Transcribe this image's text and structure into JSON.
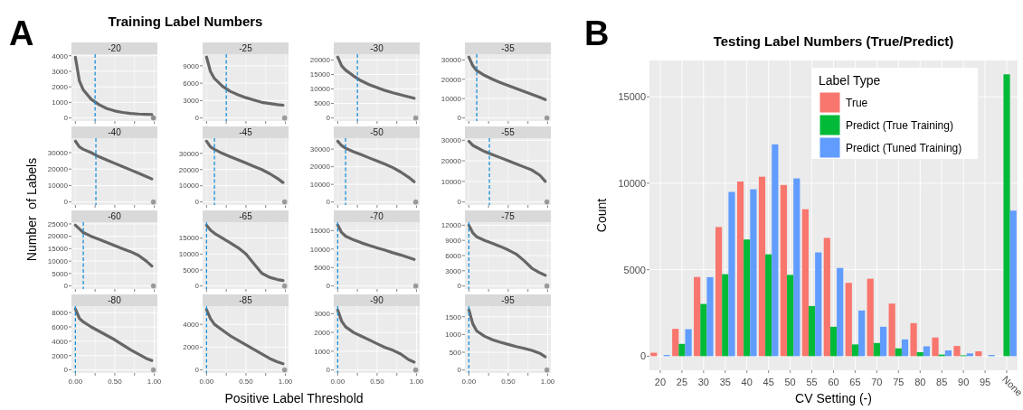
{
  "chart_data": [
    {
      "type": "line",
      "title": "-20",
      "annotations": [
        "A",
        "Training Label Numbers",
        "Positive Label Threshold",
        "Number  of Labels"
      ],
      "xlim": [
        -0.05,
        1.04
      ],
      "ylim": [
        -200,
        4100
      ],
      "xticks": [
        {
          "value": 0,
          "label": null
        },
        {
          "value": 0.25,
          "label": null
        },
        {
          "value": 0.5,
          "label": null
        },
        {
          "value": 0.75,
          "label": null
        },
        {
          "value": 1,
          "label": null
        }
      ],
      "yticks": [
        0,
        1000,
        2000,
        3000,
        4000
      ],
      "tick_labels": "y",
      "grid": true,
      "ref_lines": [
        {
          "axis": "x",
          "value": 0.25,
          "color": "#1a8fd8",
          "line_style": "dashed"
        }
      ],
      "series": [
        {
          "color": "#666666",
          "x": [
            0,
            0.05,
            0.1,
            0.2,
            0.3,
            0.4,
            0.5,
            0.6,
            0.7,
            0.8,
            0.9,
            0.97
          ],
          "values": [
            3900,
            2400,
            1800,
            1200,
            850,
            600,
            450,
            350,
            290,
            250,
            230,
            220
          ]
        },
        {
          "type": "scatter",
          "color": "#8c8c8c",
          "x": [
            0.99
          ],
          "values": [
            0
          ]
        }
      ]
    },
    {
      "type": "line",
      "title": "-25",
      "xlim": [
        -0.05,
        1.04
      ],
      "ylim": [
        -525,
        11000
      ],
      "xticks": [
        {
          "value": 0,
          "label": null
        },
        {
          "value": 0.25,
          "label": null
        },
        {
          "value": 0.5,
          "label": null
        },
        {
          "value": 0.75,
          "label": null
        },
        {
          "value": 1,
          "label": null
        }
      ],
      "yticks": [
        0,
        3000,
        6000,
        9000
      ],
      "tick_labels": "y",
      "grid": true,
      "ref_lines": [
        {
          "axis": "x",
          "value": 0.25,
          "color": "#1a8fd8",
          "line_style": "dashed"
        }
      ],
      "series": [
        {
          "color": "#666666",
          "x": [
            0,
            0.05,
            0.1,
            0.2,
            0.3,
            0.4,
            0.5,
            0.6,
            0.7,
            0.8,
            0.9,
            0.97
          ],
          "values": [
            10500,
            8000,
            6800,
            5500,
            4600,
            4000,
            3500,
            3100,
            2700,
            2500,
            2300,
            2200
          ]
        },
        {
          "type": "scatter",
          "color": "#999999",
          "x": [
            0.99
          ],
          "values": [
            0
          ]
        }
      ]
    },
    {
      "type": "line",
      "title": "-30",
      "xlim": [
        -0.05,
        1.04
      ],
      "ylim": [
        -1050,
        22000
      ],
      "xticks": [
        {
          "value": 0,
          "label": null
        },
        {
          "value": 0.25,
          "label": null
        },
        {
          "value": 0.5,
          "label": null
        },
        {
          "value": 0.75,
          "label": null
        },
        {
          "value": 1,
          "label": null
        }
      ],
      "yticks": [
        0,
        5000,
        10000,
        15000,
        20000
      ],
      "tick_labels": "y",
      "grid": true,
      "ref_lines": [
        {
          "axis": "x",
          "value": 0.25,
          "color": "#1a8fd8",
          "line_style": "dashed"
        }
      ],
      "series": [
        {
          "color": "#666666",
          "x": [
            0,
            0.05,
            0.1,
            0.2,
            0.3,
            0.4,
            0.5,
            0.6,
            0.7,
            0.8,
            0.9,
            0.97
          ],
          "values": [
            21000,
            18000,
            16500,
            14500,
            12800,
            11500,
            10500,
            9500,
            8700,
            8000,
            7300,
            6800
          ]
        },
        {
          "type": "scatter",
          "color": "#999999",
          "x": [
            0.99
          ],
          "values": [
            0
          ]
        }
      ]
    },
    {
      "type": "line",
      "title": "-35",
      "xlim": [
        -0.05,
        1.04
      ],
      "ylim": [
        -1600,
        33000
      ],
      "xticks": [
        {
          "value": 0,
          "label": null
        },
        {
          "value": 0.25,
          "label": null
        },
        {
          "value": 0.5,
          "label": null
        },
        {
          "value": 0.75,
          "label": null
        },
        {
          "value": 1,
          "label": null
        }
      ],
      "yticks": [
        0,
        10000,
        20000,
        30000
      ],
      "tick_labels": "y",
      "grid": true,
      "ref_lines": [
        {
          "axis": "x",
          "value": 0.1,
          "color": "#1a8fd8",
          "line_style": "dashed"
        }
      ],
      "series": [
        {
          "color": "#666666",
          "x": [
            0,
            0.05,
            0.1,
            0.2,
            0.3,
            0.4,
            0.5,
            0.6,
            0.7,
            0.8,
            0.9,
            0.97
          ],
          "values": [
            31500,
            27000,
            24500,
            22000,
            20000,
            18300,
            16700,
            15200,
            13700,
            12200,
            10700,
            9500
          ]
        },
        {
          "type": "scatter",
          "color": "#999999",
          "x": [
            0.99
          ],
          "values": [
            0
          ]
        }
      ]
    },
    {
      "type": "line",
      "title": "-40",
      "xlim": [
        -0.05,
        1.04
      ],
      "ylim": [
        -1850,
        38800
      ],
      "xticks": [
        {
          "value": 0,
          "label": null
        },
        {
          "value": 0.25,
          "label": null
        },
        {
          "value": 0.5,
          "label": null
        },
        {
          "value": 0.75,
          "label": null
        },
        {
          "value": 1,
          "label": null
        }
      ],
      "yticks": [
        0,
        10000,
        20000,
        30000
      ],
      "tick_labels": "y",
      "grid": true,
      "ref_lines": [
        {
          "axis": "x",
          "value": 0.26,
          "color": "#1a8fd8",
          "line_style": "dashed"
        }
      ],
      "series": [
        {
          "color": "#666666",
          "x": [
            0,
            0.05,
            0.1,
            0.2,
            0.3,
            0.4,
            0.5,
            0.6,
            0.7,
            0.8,
            0.9,
            0.97
          ],
          "values": [
            37000,
            33500,
            32000,
            30000,
            27500,
            25500,
            23500,
            21500,
            19500,
            17500,
            15500,
            14000
          ]
        },
        {
          "type": "scatter",
          "color": "#999999",
          "x": [
            0.99
          ],
          "values": [
            0
          ]
        }
      ]
    },
    {
      "type": "line",
      "title": "-45",
      "xlim": [
        -0.05,
        1.04
      ],
      "ylim": [
        -1900,
        39400
      ],
      "xticks": [
        {
          "value": 0,
          "label": null
        },
        {
          "value": 0.25,
          "label": null
        },
        {
          "value": 0.5,
          "label": null
        },
        {
          "value": 0.75,
          "label": null
        },
        {
          "value": 1,
          "label": null
        }
      ],
      "yticks": [
        0,
        10000,
        20000,
        30000
      ],
      "tick_labels": "y",
      "grid": true,
      "ref_lines": [
        {
          "axis": "x",
          "value": 0.1,
          "color": "#1a8fd8",
          "line_style": "dashed"
        }
      ],
      "series": [
        {
          "color": "#666666",
          "x": [
            0,
            0.05,
            0.1,
            0.2,
            0.3,
            0.4,
            0.5,
            0.6,
            0.7,
            0.8,
            0.9,
            0.97
          ],
          "values": [
            37500,
            34000,
            32500,
            30000,
            28000,
            26000,
            24000,
            22000,
            20000,
            17500,
            14500,
            12000
          ]
        },
        {
          "type": "scatter",
          "color": "#999999",
          "x": [
            0.99
          ],
          "values": [
            0
          ]
        }
      ]
    },
    {
      "type": "line",
      "title": "-50",
      "xlim": [
        -0.05,
        1.04
      ],
      "ylim": [
        -1700,
        36200
      ],
      "xticks": [
        {
          "value": 0,
          "label": null
        },
        {
          "value": 0.25,
          "label": null
        },
        {
          "value": 0.5,
          "label": null
        },
        {
          "value": 0.75,
          "label": null
        },
        {
          "value": 1,
          "label": null
        }
      ],
      "yticks": [
        0,
        10000,
        20000,
        30000
      ],
      "tick_labels": "y",
      "grid": true,
      "ref_lines": [
        {
          "axis": "x",
          "value": 0.1,
          "color": "#1a8fd8",
          "line_style": "dashed"
        }
      ],
      "series": [
        {
          "color": "#666666",
          "x": [
            0,
            0.05,
            0.1,
            0.2,
            0.3,
            0.4,
            0.5,
            0.6,
            0.7,
            0.8,
            0.9,
            0.97
          ],
          "values": [
            34500,
            32000,
            30500,
            28500,
            26800,
            25000,
            23300,
            21500,
            19500,
            17000,
            14000,
            11500
          ]
        },
        {
          "type": "scatter",
          "color": "#999999",
          "x": [
            0.99
          ],
          "values": [
            0
          ]
        }
      ]
    },
    {
      "type": "line",
      "title": "-55",
      "xlim": [
        -0.05,
        1.04
      ],
      "ylim": [
        -1500,
        31000
      ],
      "xticks": [
        {
          "value": 0,
          "label": null
        },
        {
          "value": 0.25,
          "label": null
        },
        {
          "value": 0.5,
          "label": null
        },
        {
          "value": 0.75,
          "label": null
        },
        {
          "value": 1,
          "label": null
        }
      ],
      "yticks": [
        0,
        10000,
        20000,
        30000
      ],
      "tick_labels": "y",
      "grid": true,
      "ref_lines": [
        {
          "axis": "x",
          "value": 0.26,
          "color": "#1a8fd8",
          "line_style": "dashed"
        }
      ],
      "series": [
        {
          "color": "#666666",
          "x": [
            0,
            0.05,
            0.1,
            0.2,
            0.3,
            0.4,
            0.5,
            0.6,
            0.7,
            0.8,
            0.9,
            0.97
          ],
          "values": [
            29500,
            27500,
            26500,
            24500,
            23000,
            21500,
            20000,
            18500,
            17000,
            15500,
            13000,
            10000
          ]
        },
        {
          "type": "scatter",
          "color": "#999999",
          "x": [
            0.99
          ],
          "values": [
            0
          ]
        }
      ]
    },
    {
      "type": "line",
      "title": "-60",
      "xlim": [
        -0.05,
        1.04
      ],
      "ylim": [
        -1250,
        25700
      ],
      "xticks": [
        {
          "value": 0,
          "label": null
        },
        {
          "value": 0.25,
          "label": null
        },
        {
          "value": 0.5,
          "label": null
        },
        {
          "value": 0.75,
          "label": null
        },
        {
          "value": 1,
          "label": null
        }
      ],
      "yticks": [
        0,
        5000,
        10000,
        15000,
        20000,
        25000
      ],
      "tick_labels": "y",
      "grid": true,
      "ref_lines": [
        {
          "axis": "x",
          "value": 0.1,
          "color": "#1a8fd8",
          "line_style": "dashed"
        }
      ],
      "series": [
        {
          "color": "#666666",
          "x": [
            0,
            0.05,
            0.1,
            0.2,
            0.3,
            0.4,
            0.5,
            0.6,
            0.7,
            0.8,
            0.9,
            0.97
          ],
          "values": [
            24500,
            23000,
            21500,
            20000,
            18800,
            17500,
            16200,
            15000,
            13800,
            12300,
            10000,
            8000
          ]
        },
        {
          "type": "scatter",
          "color": "#999999",
          "x": [
            0.99
          ],
          "values": [
            0
          ]
        }
      ]
    },
    {
      "type": "line",
      "title": "-65",
      "xlim": [
        -0.05,
        1.04
      ],
      "ylim": [
        -950,
        20000
      ],
      "xticks": [
        {
          "value": 0,
          "label": null
        },
        {
          "value": 0.25,
          "label": null
        },
        {
          "value": 0.5,
          "label": null
        },
        {
          "value": 0.75,
          "label": null
        },
        {
          "value": 1,
          "label": null
        }
      ],
      "yticks": [
        0,
        5000,
        10000,
        15000
      ],
      "tick_labels": "y",
      "grid": true,
      "ref_lines": [
        {
          "axis": "x",
          "value": 0,
          "color": "#1a8fd8",
          "line_style": "dashed"
        }
      ],
      "series": [
        {
          "color": "#666666",
          "x": [
            0,
            0.05,
            0.1,
            0.2,
            0.3,
            0.4,
            0.5,
            0.6,
            0.7,
            0.8,
            0.9,
            0.97
          ],
          "values": [
            19000,
            17500,
            16500,
            15000,
            13500,
            12000,
            10000,
            7000,
            4000,
            2700,
            2000,
            1700
          ]
        },
        {
          "type": "scatter",
          "color": "#999999",
          "x": [
            0.99
          ],
          "values": [
            0
          ]
        }
      ]
    },
    {
      "type": "line",
      "title": "-70",
      "xlim": [
        -0.05,
        1.04
      ],
      "ylim": [
        -825,
        17300
      ],
      "xticks": [
        {
          "value": 0,
          "label": null
        },
        {
          "value": 0.25,
          "label": null
        },
        {
          "value": 0.5,
          "label": null
        },
        {
          "value": 0.75,
          "label": null
        },
        {
          "value": 1,
          "label": null
        }
      ],
      "yticks": [
        0,
        5000,
        10000,
        15000
      ],
      "tick_labels": "y",
      "grid": true,
      "ref_lines": [
        {
          "axis": "x",
          "value": 0,
          "color": "#1a8fd8",
          "line_style": "dashed"
        }
      ],
      "series": [
        {
          "color": "#666666",
          "x": [
            0,
            0.05,
            0.1,
            0.2,
            0.3,
            0.4,
            0.5,
            0.6,
            0.7,
            0.8,
            0.9,
            0.97
          ],
          "values": [
            16500,
            14500,
            13500,
            12500,
            11700,
            11000,
            10300,
            9700,
            9000,
            8400,
            7700,
            7200
          ]
        },
        {
          "type": "scatter",
          "color": "#999999",
          "x": [
            0.99
          ],
          "values": [
            0
          ]
        }
      ]
    },
    {
      "type": "line",
      "title": "-75",
      "xlim": [
        -0.05,
        1.04
      ],
      "ylim": [
        -600,
        12600
      ],
      "xticks": [
        {
          "value": 0,
          "label": null
        },
        {
          "value": 0.25,
          "label": null
        },
        {
          "value": 0.5,
          "label": null
        },
        {
          "value": 0.75,
          "label": null
        },
        {
          "value": 1,
          "label": null
        }
      ],
      "yticks": [
        0,
        3000,
        6000,
        9000,
        12000
      ],
      "tick_labels": "y",
      "grid": true,
      "ref_lines": [
        {
          "axis": "x",
          "value": 0,
          "color": "#1a8fd8",
          "line_style": "dashed"
        }
      ],
      "series": [
        {
          "color": "#666666",
          "x": [
            0,
            0.05,
            0.1,
            0.2,
            0.3,
            0.4,
            0.5,
            0.6,
            0.7,
            0.8,
            0.9,
            0.97
          ],
          "values": [
            12000,
            10500,
            9700,
            9000,
            8400,
            7800,
            7100,
            6300,
            5000,
            3500,
            2600,
            2100
          ]
        },
        {
          "type": "scatter",
          "color": "#999999",
          "x": [
            0.99
          ],
          "values": [
            0
          ]
        }
      ]
    },
    {
      "type": "line",
      "title": "-80",
      "xlim": [
        -0.05,
        1.04
      ],
      "ylim": [
        -430,
        8900
      ],
      "xticks": [
        {
          "value": 0,
          "label": "0.00"
        },
        {
          "value": 0.25,
          "label": null
        },
        {
          "value": 0.5,
          "label": "0.50"
        },
        {
          "value": 0.75,
          "label": null
        },
        {
          "value": 1,
          "label": "1.00"
        }
      ],
      "yticks": [
        0,
        2000,
        4000,
        6000,
        8000
      ],
      "grid": true,
      "ref_lines": [
        {
          "axis": "x",
          "value": 0,
          "color": "#1a8fd8",
          "line_style": "dashed"
        }
      ],
      "series": [
        {
          "color": "#666666",
          "x": [
            0,
            0.05,
            0.1,
            0.2,
            0.3,
            0.4,
            0.5,
            0.6,
            0.7,
            0.8,
            0.9,
            0.97
          ],
          "values": [
            8500,
            7200,
            6700,
            6000,
            5400,
            4800,
            4200,
            3500,
            2800,
            2200,
            1600,
            1300
          ]
        },
        {
          "type": "scatter",
          "color": "#999999",
          "x": [
            0.99
          ],
          "values": [
            0
          ]
        }
      ]
    },
    {
      "type": "line",
      "title": "-85",
      "xlim": [
        -0.05,
        1.04
      ],
      "ylim": [
        -270,
        5600
      ],
      "xticks": [
        {
          "value": 0,
          "label": "0.00"
        },
        {
          "value": 0.25,
          "label": null
        },
        {
          "value": 0.5,
          "label": "0.50"
        },
        {
          "value": 0.75,
          "label": null
        },
        {
          "value": 1,
          "label": "1.00"
        }
      ],
      "yticks": [
        0,
        2000,
        4000
      ],
      "grid": true,
      "ref_lines": [
        {
          "axis": "x",
          "value": 0,
          "color": "#1a8fd8",
          "line_style": "dashed"
        }
      ],
      "series": [
        {
          "color": "#666666",
          "x": [
            0,
            0.05,
            0.1,
            0.2,
            0.3,
            0.4,
            0.5,
            0.6,
            0.7,
            0.8,
            0.9,
            0.97
          ],
          "values": [
            5300,
            4500,
            4000,
            3500,
            3000,
            2600,
            2200,
            1800,
            1400,
            1000,
            700,
            550
          ]
        },
        {
          "type": "scatter",
          "color": "#999999",
          "x": [
            0.99
          ],
          "values": [
            0
          ]
        }
      ]
    },
    {
      "type": "line",
      "title": "-90",
      "xlim": [
        -0.05,
        1.04
      ],
      "ylim": [
        -160,
        3400
      ],
      "xticks": [
        {
          "value": 0,
          "label": "0.00"
        },
        {
          "value": 0.25,
          "label": null
        },
        {
          "value": 0.5,
          "label": "0.50"
        },
        {
          "value": 0.75,
          "label": null
        },
        {
          "value": 1,
          "label": "1.00"
        }
      ],
      "yticks": [
        0,
        1000,
        2000,
        3000
      ],
      "grid": true,
      "ref_lines": [
        {
          "axis": "x",
          "value": 0,
          "color": "#1a8fd8",
          "line_style": "dashed"
        }
      ],
      "series": [
        {
          "color": "#666666",
          "x": [
            0,
            0.05,
            0.1,
            0.2,
            0.3,
            0.4,
            0.5,
            0.6,
            0.7,
            0.8,
            0.9,
            0.97
          ],
          "values": [
            3200,
            2600,
            2300,
            2000,
            1800,
            1600,
            1400,
            1200,
            1050,
            850,
            550,
            420
          ]
        },
        {
          "type": "scatter",
          "color": "#999999",
          "x": [
            0.99
          ],
          "values": [
            0
          ]
        }
      ]
    },
    {
      "type": "line",
      "title": "-95",
      "xlim": [
        -0.05,
        1.04
      ],
      "ylim": [
        -85,
        1800
      ],
      "xticks": [
        {
          "value": 0,
          "label": "0.00"
        },
        {
          "value": 0.25,
          "label": null
        },
        {
          "value": 0.5,
          "label": "0.50"
        },
        {
          "value": 0.75,
          "label": null
        },
        {
          "value": 1,
          "label": "1.00"
        }
      ],
      "yticks": [
        0,
        500,
        1000,
        1500
      ],
      "grid": true,
      "ref_lines": [
        {
          "axis": "x",
          "value": 0,
          "color": "#1a8fd8",
          "line_style": "dashed"
        }
      ],
      "series": [
        {
          "color": "#666666",
          "x": [
            0,
            0.05,
            0.1,
            0.2,
            0.3,
            0.4,
            0.5,
            0.6,
            0.7,
            0.8,
            0.9,
            0.97
          ],
          "values": [
            1700,
            1300,
            1100,
            950,
            850,
            780,
            720,
            660,
            610,
            550,
            470,
            370
          ]
        },
        {
          "type": "scatter",
          "color": "#999999",
          "x": [
            0.99
          ],
          "values": [
            0
          ]
        }
      ]
    },
    {
      "type": "bar",
      "title": "Testing Label Numbers (True/Predict)",
      "annotations": [
        "B"
      ],
      "xlabel": "CV Setting (-)",
      "ylabel": "Count",
      "legend_title": "Label Type",
      "legend": "top right",
      "grid": true,
      "categories": [
        "20",
        "25",
        "30",
        "35",
        "40",
        "45",
        "50",
        "55",
        "60",
        "65",
        "70",
        "75",
        "80",
        "85",
        "90",
        "95",
        "None"
      ],
      "ylim": [
        -815,
        17100
      ],
      "yticks": [
        0,
        5000,
        10000,
        15000
      ],
      "series": [
        {
          "name": "True",
          "color": "#f8766d",
          "values": [
            200,
            1580,
            4580,
            7470,
            10100,
            10380,
            9900,
            8500,
            6840,
            4240,
            4480,
            3040,
            1910,
            1080,
            590,
            280,
            0
          ]
        },
        {
          "name": "Predict (True Training)",
          "color": "#00ba38",
          "values": [
            null,
            710,
            3020,
            4740,
            6750,
            5890,
            4700,
            2900,
            1700,
            680,
            760,
            450,
            230,
            90,
            50,
            null,
            16300
          ]
        },
        {
          "name": "Predict (Tuned Training)",
          "color": "#619cff",
          "values": [
            70,
            1560,
            4570,
            9500,
            9650,
            12250,
            10280,
            6000,
            5100,
            2640,
            1700,
            970,
            570,
            330,
            160,
            70,
            8420
          ]
        }
      ]
    }
  ]
}
